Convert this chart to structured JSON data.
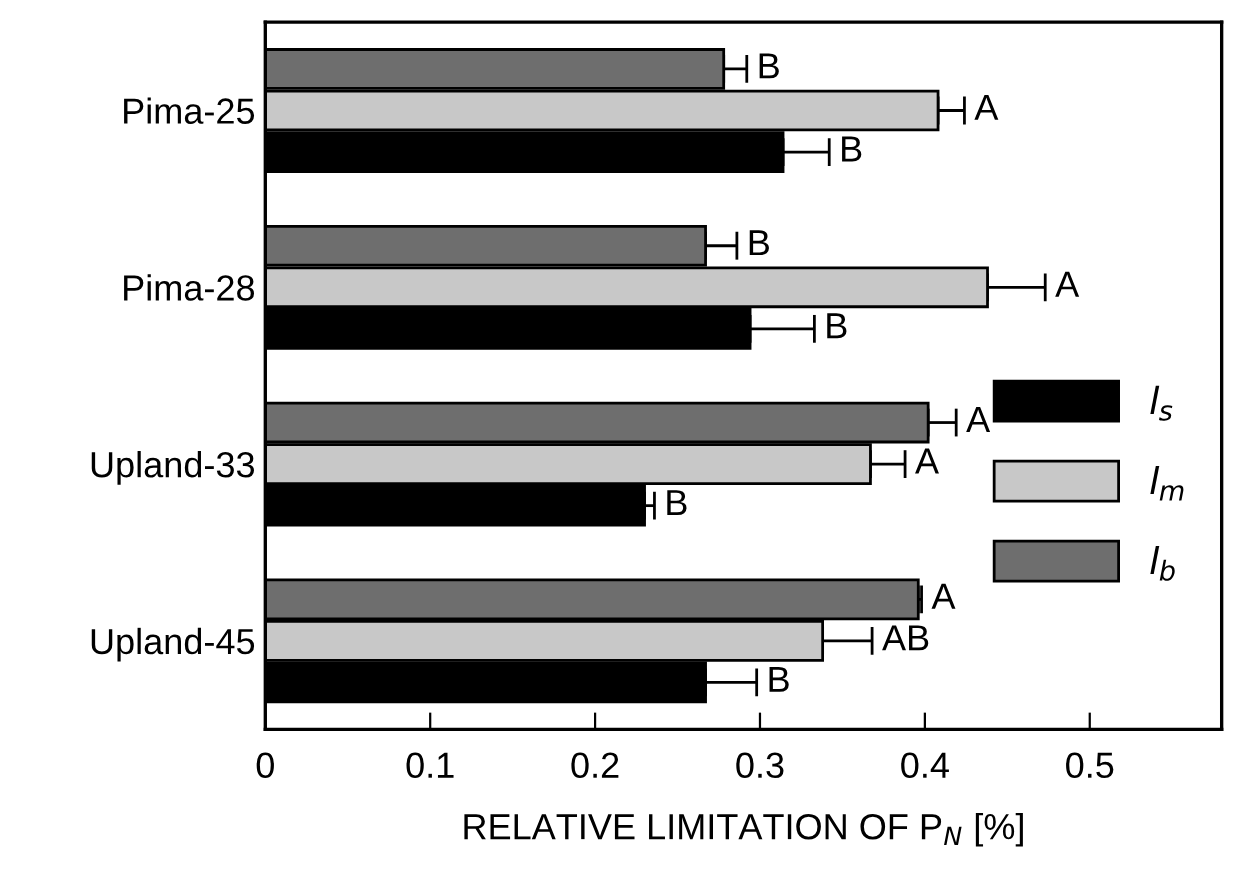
{
  "chart_data": {
    "type": "bar",
    "orientation": "horizontal",
    "xlabel": "RELATIVE LIMITATION OF P$_{N}$ [%]",
    "categories": [
      "Pima-25",
      "Pima-28",
      "Upland-33",
      "Upland-45"
    ],
    "series": [
      {
        "name": "l$_{s}$",
        "color": "#000000",
        "values": [
          0.314,
          0.294,
          0.23,
          0.267
        ],
        "errors": [
          [
            0.314,
            0.342
          ],
          [
            0.294,
            0.333
          ],
          [
            0.23,
            0.236
          ],
          [
            0.267,
            0.298
          ]
        ],
        "value_labels": [
          "B",
          "B",
          "B",
          "B"
        ]
      },
      {
        "name": "l$_{m}$",
        "color": "#c8c8c8",
        "values": [
          0.408,
          0.438,
          0.367,
          0.338
        ],
        "errors": [
          [
            0.408,
            0.424
          ],
          [
            0.438,
            0.473
          ],
          [
            0.367,
            0.388
          ],
          [
            0.338,
            0.368
          ]
        ],
        "value_labels": [
          "A",
          "A",
          "A",
          "AB"
        ]
      },
      {
        "name": "l$_{b}$",
        "color": "#6e6e6e",
        "values": [
          0.278,
          0.267,
          0.402,
          0.396
        ],
        "errors": [
          [
            0.278,
            0.292
          ],
          [
            0.267,
            0.286
          ],
          [
            0.402,
            0.419
          ],
          [
            0.396,
            0.398
          ]
        ],
        "value_labels": [
          "B",
          "B",
          "A",
          "A"
        ]
      }
    ],
    "xlim": [
      0,
      0.58
    ],
    "xticks": [
      0,
      0.1,
      0.2,
      0.3,
      0.4,
      0.5
    ],
    "grid": false,
    "legend": "right"
  }
}
